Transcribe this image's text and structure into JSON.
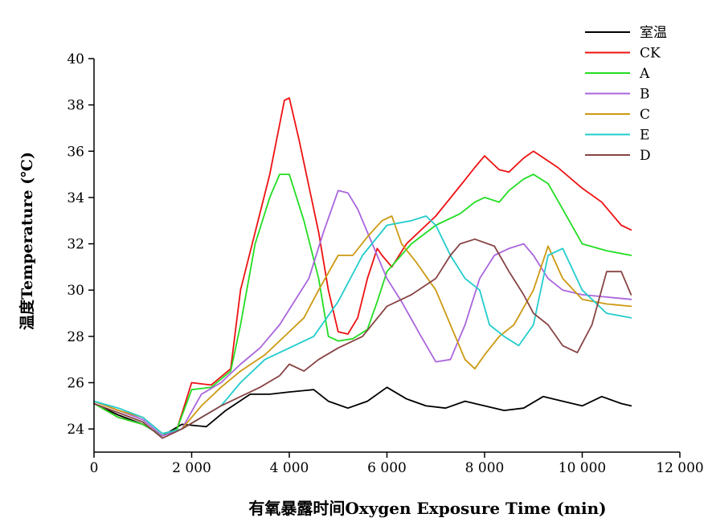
{
  "chart_data": {
    "type": "line",
    "title": "",
    "xlabel": "有氧暴露时间Oxygen Exposure Time (min)",
    "ylabel": "温度Temperature (℃)",
    "xlim": [
      0,
      12000
    ],
    "ylim": [
      23,
      40
    ],
    "xticks": [
      0,
      2000,
      4000,
      6000,
      8000,
      10000,
      12000
    ],
    "xtick_labels": [
      "0",
      "2 000",
      "4 000",
      "6 000",
      "8 000",
      "10 000",
      "12 000"
    ],
    "yticks": [
      24,
      26,
      28,
      30,
      32,
      34,
      36,
      38,
      40
    ],
    "ytick_labels": [
      "24",
      "26",
      "28",
      "30",
      "32",
      "34",
      "36",
      "38",
      "40"
    ],
    "grid": false,
    "legend_position": "top-right",
    "series": [
      {
        "name": "室温",
        "color": "#000000",
        "x": [
          0,
          500,
          1000,
          1400,
          1800,
          2300,
          2700,
          3200,
          3600,
          4000,
          4500,
          4800,
          5200,
          5600,
          6000,
          6400,
          6800,
          7200,
          7600,
          8000,
          8400,
          8800,
          9200,
          9600,
          10000,
          10400,
          10800,
          11000
        ],
        "y": [
          25.1,
          24.6,
          24.2,
          23.7,
          24.2,
          24.1,
          24.8,
          25.5,
          25.5,
          25.6,
          25.7,
          25.2,
          24.9,
          25.2,
          25.8,
          25.3,
          25.0,
          24.9,
          25.2,
          25.0,
          24.8,
          24.9,
          25.4,
          25.2,
          25.0,
          25.4,
          25.1,
          25.0
        ]
      },
      {
        "name": "CK",
        "color": "#ee1111",
        "x": [
          0,
          500,
          1000,
          1400,
          1700,
          2000,
          2400,
          2800,
          3000,
          3300,
          3600,
          3900,
          4000,
          4200,
          4400,
          4600,
          4800,
          5000,
          5200,
          5400,
          5600,
          5800,
          5900,
          6100,
          6400,
          7000,
          7500,
          7800,
          8000,
          8300,
          8500,
          8800,
          9000,
          9500,
          10000,
          10400,
          10600,
          10800,
          11000
        ],
        "y": [
          25.1,
          24.5,
          24.2,
          23.7,
          24.0,
          26.0,
          25.9,
          26.6,
          30.0,
          32.5,
          35.0,
          38.2,
          38.3,
          36.5,
          34.5,
          32.5,
          30.0,
          28.2,
          28.1,
          28.8,
          30.5,
          31.8,
          31.5,
          31.0,
          32.0,
          33.2,
          34.5,
          35.3,
          35.8,
          35.2,
          35.1,
          35.7,
          36.0,
          35.3,
          34.4,
          33.8,
          33.3,
          32.8,
          32.6
        ]
      },
      {
        "name": "A",
        "color": "#22dd22",
        "x": [
          0,
          500,
          1000,
          1400,
          1700,
          2000,
          2400,
          2800,
          3000,
          3300,
          3600,
          3800,
          4000,
          4300,
          4600,
          4800,
          5000,
          5300,
          5600,
          5800,
          6000,
          6500,
          7000,
          7500,
          7800,
          8000,
          8300,
          8500,
          8800,
          9000,
          9300,
          9600,
          10000,
          10500,
          11000
        ],
        "y": [
          25.1,
          24.5,
          24.2,
          23.7,
          24.0,
          25.7,
          25.8,
          26.5,
          28.5,
          32.0,
          34.0,
          35.0,
          35.0,
          33.0,
          30.5,
          28.0,
          27.8,
          27.9,
          28.3,
          29.5,
          30.8,
          32.0,
          32.8,
          33.3,
          33.8,
          34.0,
          33.8,
          34.3,
          34.8,
          35.0,
          34.6,
          33.5,
          32.0,
          31.7,
          31.5
        ]
      },
      {
        "name": "B",
        "color": "#aa66dd",
        "x": [
          0,
          500,
          1000,
          1400,
          1800,
          2200,
          2600,
          3000,
          3400,
          3800,
          4100,
          4400,
          4700,
          5000,
          5200,
          5400,
          5700,
          6000,
          6300,
          6700,
          7000,
          7300,
          7600,
          7900,
          8200,
          8500,
          8800,
          9000,
          9300,
          9600,
          10000,
          10500,
          11000
        ],
        "y": [
          25.2,
          24.8,
          24.4,
          23.7,
          24.0,
          25.5,
          26.0,
          26.8,
          27.5,
          28.5,
          29.5,
          30.5,
          32.5,
          34.3,
          34.2,
          33.5,
          32.0,
          30.5,
          29.5,
          28.0,
          26.9,
          27.0,
          28.5,
          30.5,
          31.5,
          31.8,
          32.0,
          31.5,
          30.5,
          30.0,
          29.8,
          29.7,
          29.6
        ]
      },
      {
        "name": "C",
        "color": "#cc9911",
        "x": [
          0,
          500,
          1000,
          1400,
          1800,
          2200,
          2600,
          3000,
          3500,
          4000,
          4300,
          4600,
          5000,
          5300,
          5600,
          5900,
          6100,
          6300,
          6600,
          7000,
          7300,
          7600,
          7800,
          8000,
          8300,
          8600,
          9000,
          9300,
          9600,
          10000,
          10500,
          11000
        ],
        "y": [
          25.2,
          24.8,
          24.5,
          23.8,
          24.0,
          25.0,
          25.8,
          26.5,
          27.2,
          28.2,
          28.8,
          30.0,
          31.5,
          31.5,
          32.3,
          33.0,
          33.2,
          32.0,
          31.2,
          30.0,
          28.5,
          27.0,
          26.6,
          27.2,
          28.0,
          28.5,
          30.0,
          31.9,
          30.5,
          29.6,
          29.4,
          29.3
        ]
      },
      {
        "name": "E",
        "color": "#22cccc",
        "x": [
          0,
          500,
          1000,
          1400,
          1800,
          2200,
          2600,
          3000,
          3500,
          4000,
          4500,
          5000,
          5500,
          6000,
          6500,
          6800,
          7000,
          7300,
          7600,
          7900,
          8100,
          8400,
          8700,
          9000,
          9300,
          9600,
          10000,
          10500,
          11000
        ],
        "y": [
          25.2,
          24.9,
          24.5,
          23.8,
          24.0,
          24.5,
          25.0,
          26.0,
          27.0,
          27.5,
          28.0,
          29.5,
          31.5,
          32.8,
          33.0,
          33.2,
          32.8,
          31.5,
          30.5,
          30.0,
          28.5,
          28.0,
          27.6,
          28.5,
          31.5,
          31.8,
          30.0,
          29.0,
          28.8
        ]
      },
      {
        "name": "D",
        "color": "#884444",
        "x": [
          0,
          500,
          1000,
          1400,
          1800,
          2200,
          2600,
          3000,
          3400,
          3800,
          4000,
          4300,
          4600,
          5000,
          5500,
          6000,
          6500,
          7000,
          7300,
          7500,
          7800,
          8200,
          8500,
          8800,
          9000,
          9300,
          9600,
          9900,
          10200,
          10500,
          10800,
          11000
        ],
        "y": [
          25.1,
          24.7,
          24.3,
          23.6,
          24.0,
          24.5,
          25.0,
          25.4,
          25.8,
          26.3,
          26.8,
          26.5,
          27.0,
          27.5,
          28.0,
          29.3,
          29.8,
          30.5,
          31.5,
          32.0,
          32.2,
          31.9,
          30.8,
          29.8,
          29.0,
          28.5,
          27.6,
          27.3,
          28.5,
          30.8,
          30.8,
          29.8
        ]
      }
    ]
  }
}
